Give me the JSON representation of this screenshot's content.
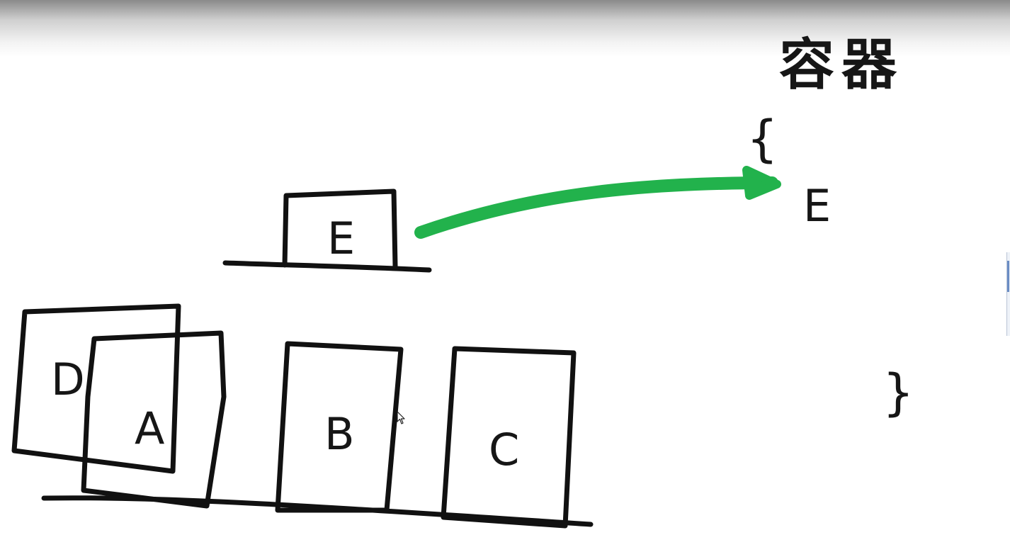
{
  "title": "容器",
  "container": {
    "open_brace": "{",
    "close_brace": "}",
    "contents": [
      "E"
    ]
  },
  "boxes": {
    "lifted": "E",
    "d": "D",
    "a": "A",
    "b": "B",
    "c": "C"
  },
  "colors": {
    "ink": "#111111",
    "arrow": "#22b24c",
    "background": "#ffffff"
  },
  "icons": {
    "cursor": "mouse-pointer-icon",
    "arrow": "arrow-right-icon"
  }
}
